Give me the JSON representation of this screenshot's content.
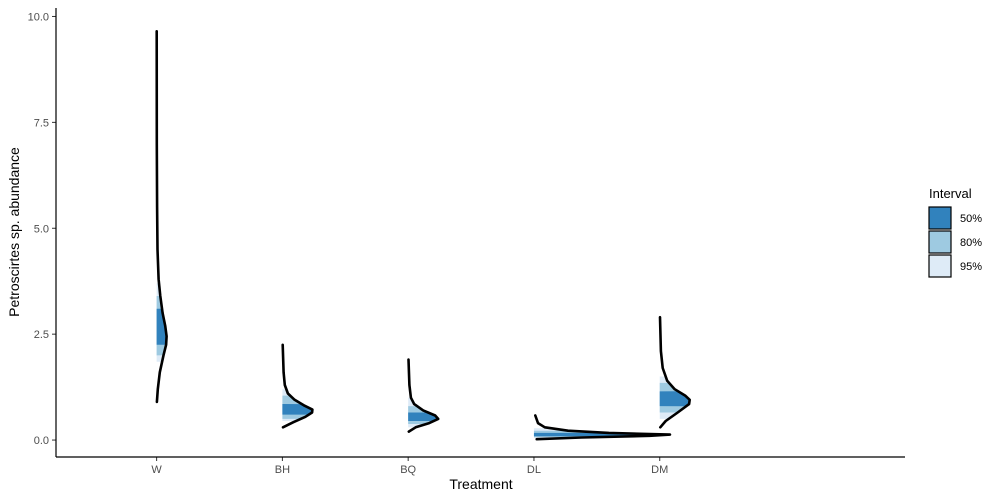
{
  "chart_data": {
    "type": "halfeye-density",
    "xlabel": "Treatment",
    "ylabel": "Petroscirtes sp. abundance",
    "ylim": [
      -0.4,
      10.2
    ],
    "yticks": [
      0.0,
      2.5,
      5.0,
      7.5,
      10.0
    ],
    "ytick_labels": [
      "0.0",
      "2.5",
      "5.0",
      "7.5",
      "10.0"
    ],
    "categories": [
      "W",
      "BH",
      "BQ",
      "DL",
      "DM"
    ],
    "grid": false,
    "legend": {
      "title": "Interval",
      "position": "right",
      "entries": [
        {
          "label": "50%",
          "color": "#3182bd"
        },
        {
          "label": "80%",
          "color": "#9ecae1"
        },
        {
          "label": "95%",
          "color": "#deebf7"
        }
      ]
    },
    "series": [
      {
        "category": "W",
        "density": [
          [
            0.9,
            0.02
          ],
          [
            1.2,
            0.08
          ],
          [
            1.6,
            0.22
          ],
          [
            2.0,
            0.48
          ],
          [
            2.25,
            0.66
          ],
          [
            2.45,
            0.7
          ],
          [
            2.7,
            0.6
          ],
          [
            3.0,
            0.42
          ],
          [
            3.4,
            0.26
          ],
          [
            3.8,
            0.14
          ],
          [
            4.5,
            0.06
          ],
          [
            5.5,
            0.03
          ],
          [
            7.0,
            0.015
          ],
          [
            9.65,
            0.005
          ]
        ],
        "intervals": {
          "95": [
            1.85,
            3.7
          ],
          "80": [
            2.0,
            3.4
          ],
          "50": [
            2.25,
            3.1
          ]
        }
      },
      {
        "category": "BH",
        "density": [
          [
            0.3,
            0.02
          ],
          [
            0.42,
            0.35
          ],
          [
            0.55,
            0.75
          ],
          [
            0.65,
            0.97
          ],
          [
            0.72,
            0.98
          ],
          [
            0.82,
            0.7
          ],
          [
            0.95,
            0.4
          ],
          [
            1.1,
            0.18
          ],
          [
            1.3,
            0.08
          ],
          [
            1.6,
            0.04
          ],
          [
            2.25,
            0.01
          ]
        ],
        "intervals": {
          "95": [
            0.45,
            1.2
          ],
          "80": [
            0.5,
            1.05
          ],
          "50": [
            0.6,
            0.85
          ]
        }
      },
      {
        "category": "BQ",
        "density": [
          [
            0.2,
            0.02
          ],
          [
            0.3,
            0.25
          ],
          [
            0.4,
            0.7
          ],
          [
            0.5,
            1.0
          ],
          [
            0.58,
            0.9
          ],
          [
            0.7,
            0.5
          ],
          [
            0.85,
            0.2
          ],
          [
            1.0,
            0.09
          ],
          [
            1.3,
            0.04
          ],
          [
            1.9,
            0.01
          ]
        ],
        "intervals": {
          "95": [
            0.3,
            1.0
          ],
          "80": [
            0.38,
            0.8
          ],
          "50": [
            0.45,
            0.65
          ]
        }
      },
      {
        "category": "DL",
        "density": [
          [
            0.02,
            0.02
          ],
          [
            0.06,
            0.35
          ],
          [
            0.1,
            0.85
          ],
          [
            0.13,
            1.0
          ],
          [
            0.17,
            0.55
          ],
          [
            0.22,
            0.25
          ],
          [
            0.3,
            0.08
          ],
          [
            0.4,
            0.03
          ],
          [
            0.58,
            0.01
          ]
        ],
        "intervals": {
          "95": [
            0.05,
            0.28
          ],
          "80": [
            0.07,
            0.22
          ],
          "50": [
            0.09,
            0.17
          ]
        }
      },
      {
        "category": "DM",
        "density": [
          [
            0.3,
            0.02
          ],
          [
            0.45,
            0.2
          ],
          [
            0.65,
            0.6
          ],
          [
            0.85,
            0.98
          ],
          [
            0.95,
            1.0
          ],
          [
            1.05,
            0.85
          ],
          [
            1.2,
            0.5
          ],
          [
            1.4,
            0.25
          ],
          [
            1.7,
            0.1
          ],
          [
            2.1,
            0.04
          ],
          [
            2.9,
            0.01
          ]
        ],
        "intervals": {
          "95": [
            0.5,
            1.5
          ],
          "80": [
            0.65,
            1.35
          ],
          "50": [
            0.8,
            1.15
          ]
        }
      }
    ]
  }
}
